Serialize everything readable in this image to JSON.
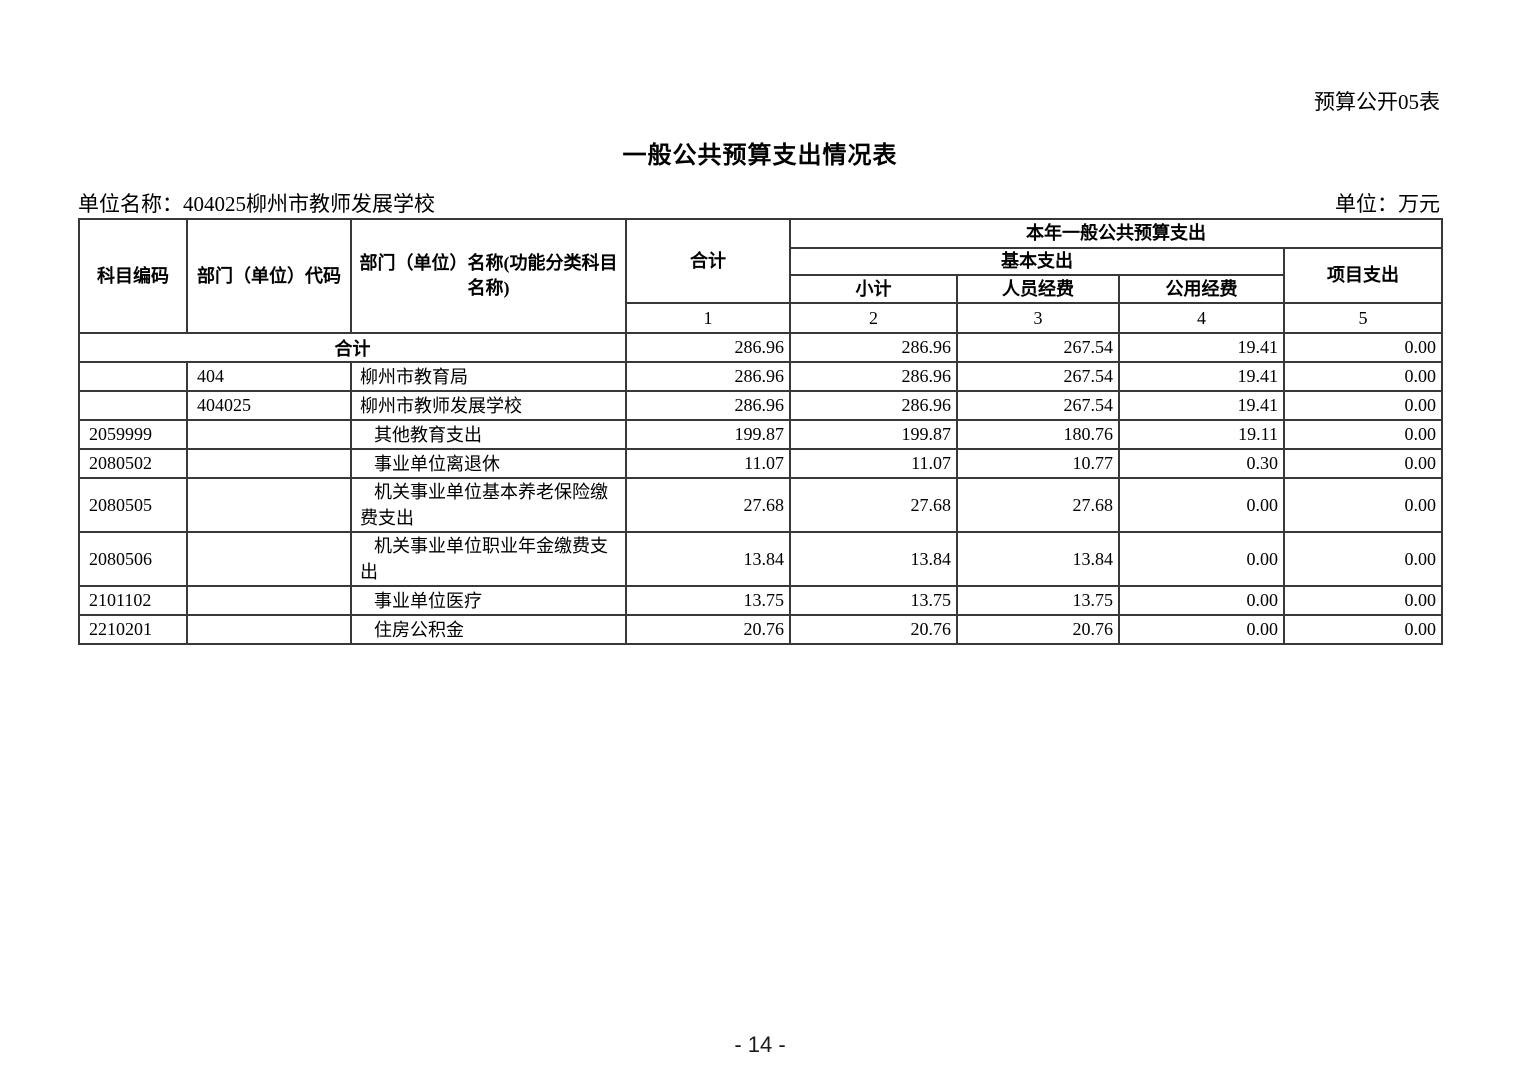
{
  "page": {
    "doc_label": "预算公开05表",
    "title": "一般公共预算支出情况表",
    "unit_name": "单位名称：404025柳州市教师发展学校",
    "unit_label": "单位：万元",
    "page_number": "- 14 -"
  },
  "table": {
    "headers": {
      "subject_code": "科目编码",
      "dept_code": "部门（单位）代码",
      "dept_name": "部门（单位）名称(功能分类科目名称)",
      "total": "合计",
      "current_year": "本年一般公共预算支出",
      "basic_expenditure": "基本支出",
      "subtotal": "小计",
      "personnel": "人员经费",
      "public_funds": "公用经费",
      "project": "项目支出",
      "col_numbers": [
        "1",
        "2",
        "3",
        "4",
        "5"
      ]
    },
    "summary_row": {
      "label": "合计",
      "values": [
        "286.96",
        "286.96",
        "267.54",
        "19.41",
        "0.00"
      ]
    },
    "rows": [
      {
        "subject_code": "",
        "dept_code": "404",
        "name": "柳州市教育局",
        "indent": false,
        "values": [
          "286.96",
          "286.96",
          "267.54",
          "19.41",
          "0.00"
        ]
      },
      {
        "subject_code": "",
        "dept_code": "404025",
        "name": "柳州市教师发展学校",
        "indent": false,
        "values": [
          "286.96",
          "286.96",
          "267.54",
          "19.41",
          "0.00"
        ]
      },
      {
        "subject_code": "2059999",
        "dept_code": "",
        "name": "其他教育支出",
        "indent": true,
        "values": [
          "199.87",
          "199.87",
          "180.76",
          "19.11",
          "0.00"
        ]
      },
      {
        "subject_code": "2080502",
        "dept_code": "",
        "name": "事业单位离退休",
        "indent": true,
        "values": [
          "11.07",
          "11.07",
          "10.77",
          "0.30",
          "0.00"
        ]
      },
      {
        "subject_code": "2080505",
        "dept_code": "",
        "name": "机关事业单位基本养老保险缴费支出",
        "indent": true,
        "values": [
          "27.68",
          "27.68",
          "27.68",
          "0.00",
          "0.00"
        ]
      },
      {
        "subject_code": "2080506",
        "dept_code": "",
        "name": "机关事业单位职业年金缴费支出",
        "indent": true,
        "values": [
          "13.84",
          "13.84",
          "13.84",
          "0.00",
          "0.00"
        ]
      },
      {
        "subject_code": "2101102",
        "dept_code": "",
        "name": "事业单位医疗",
        "indent": true,
        "values": [
          "13.75",
          "13.75",
          "13.75",
          "0.00",
          "0.00"
        ]
      },
      {
        "subject_code": "2210201",
        "dept_code": "",
        "name": "住房公积金",
        "indent": true,
        "values": [
          "20.76",
          "20.76",
          "20.76",
          "0.00",
          "0.00"
        ]
      }
    ]
  }
}
